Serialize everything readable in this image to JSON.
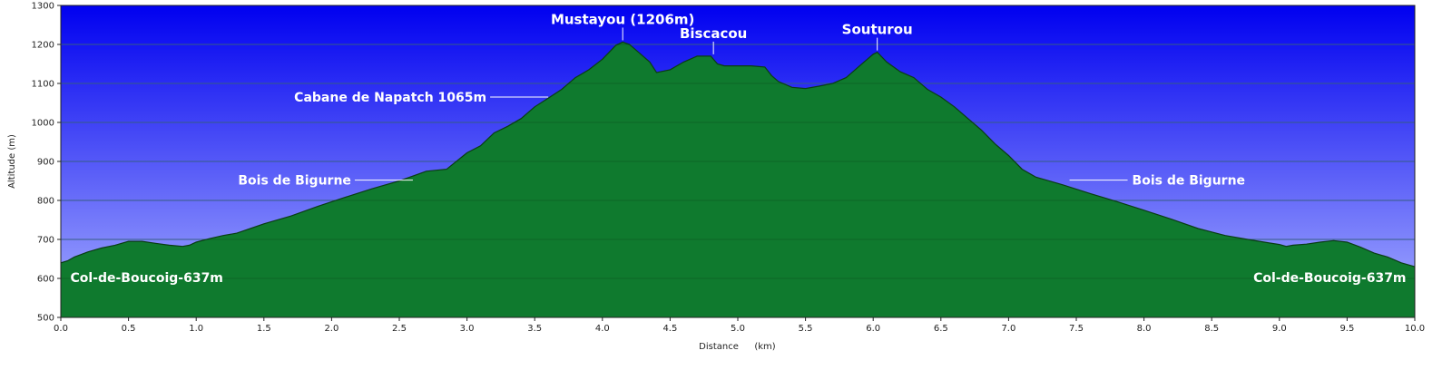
{
  "chart_data": {
    "type": "area",
    "xlabel": "Distance",
    "xunit": "(km)",
    "ylabel": "Altitude (m)",
    "xlim": [
      0.0,
      10.0
    ],
    "ylim": [
      500,
      1300
    ],
    "xticks": [
      "0.0",
      "0.5",
      "1.0",
      "1.5",
      "2.0",
      "2.5",
      "3.0",
      "3.5",
      "4.0",
      "4.5",
      "5.0",
      "5.5",
      "6.0",
      "6.5",
      "7.0",
      "7.5",
      "8.0",
      "8.5",
      "9.0",
      "9.5",
      "10.0"
    ],
    "yticks": [
      "500",
      "600",
      "700",
      "800",
      "900",
      "1000",
      "1100",
      "1200",
      "1300"
    ],
    "grid": true,
    "colors": {
      "sky_top": "#0000f0",
      "sky_bottom": "#a8b0ff",
      "terrain_light": "#2dbb50",
      "terrain_dark": "#0f6e2a",
      "outline": "#0a3d14"
    },
    "series": [
      {
        "x": [
          0.0,
          0.05,
          0.1,
          0.2,
          0.3,
          0.4,
          0.5,
          0.6,
          0.7,
          0.8,
          0.9,
          0.95,
          1.0,
          1.1,
          1.2,
          1.3,
          1.4,
          1.5,
          1.7,
          1.9,
          2.1,
          2.3,
          2.5,
          2.7,
          2.85,
          3.0,
          3.1,
          3.2,
          3.3,
          3.4,
          3.5,
          3.6,
          3.7,
          3.8,
          3.9,
          4.0,
          4.05,
          4.1,
          4.15,
          4.2,
          4.25,
          4.3,
          4.35,
          4.4,
          4.5,
          4.6,
          4.7,
          4.8,
          4.85,
          4.9,
          5.0,
          5.1,
          5.2,
          5.25,
          5.3,
          5.4,
          5.5,
          5.6,
          5.7,
          5.8,
          5.9,
          5.95,
          6.0,
          6.03,
          6.1,
          6.2,
          6.3,
          6.4,
          6.5,
          6.6,
          6.7,
          6.8,
          6.9,
          7.0,
          7.1,
          7.2,
          7.4,
          7.6,
          7.8,
          8.0,
          8.2,
          8.4,
          8.6,
          8.8,
          9.0,
          9.05,
          9.1,
          9.2,
          9.3,
          9.4,
          9.5,
          9.6,
          9.7,
          9.8,
          9.9,
          10.0
        ],
        "y": [
          640,
          645,
          655,
          668,
          678,
          685,
          695,
          695,
          690,
          685,
          682,
          685,
          693,
          702,
          710,
          716,
          728,
          740,
          760,
          785,
          808,
          830,
          850,
          875,
          880,
          922,
          940,
          973,
          990,
          1010,
          1040,
          1062,
          1085,
          1115,
          1135,
          1162,
          1180,
          1198,
          1206,
          1200,
          1185,
          1170,
          1155,
          1128,
          1135,
          1155,
          1170,
          1170,
          1150,
          1145,
          1145,
          1145,
          1142,
          1120,
          1105,
          1090,
          1087,
          1093,
          1100,
          1115,
          1145,
          1160,
          1175,
          1180,
          1155,
          1130,
          1115,
          1085,
          1065,
          1040,
          1010,
          980,
          945,
          915,
          880,
          860,
          840,
          818,
          797,
          775,
          752,
          728,
          710,
          698,
          687,
          682,
          685,
          688,
          693,
          697,
          693,
          680,
          665,
          655,
          640,
          630
        ]
      }
    ],
    "annotations": [
      {
        "text": "Mustayou (1206m)",
        "x": 4.15,
        "y": 1206,
        "style": "top"
      },
      {
        "text": "Biscacou",
        "x": 4.82,
        "y": 1170,
        "style": "top"
      },
      {
        "text": "Souturou",
        "x": 6.03,
        "y": 1180,
        "style": "top"
      },
      {
        "text": "Cabane de Napatch 1065m",
        "x": 3.6,
        "y": 1065,
        "style": "left"
      },
      {
        "text": "Bois de Bigurne",
        "x": 2.6,
        "y": 852,
        "style": "left"
      },
      {
        "text": "Bois de Bigurne",
        "x": 7.45,
        "y": 852,
        "style": "right"
      },
      {
        "text": "Col-de-Boucoig-637m",
        "x": 0.05,
        "y": 600,
        "style": "inside-left"
      },
      {
        "text": "Col-de-Boucoig-637m",
        "x": 9.95,
        "y": 600,
        "style": "inside-right"
      }
    ]
  }
}
